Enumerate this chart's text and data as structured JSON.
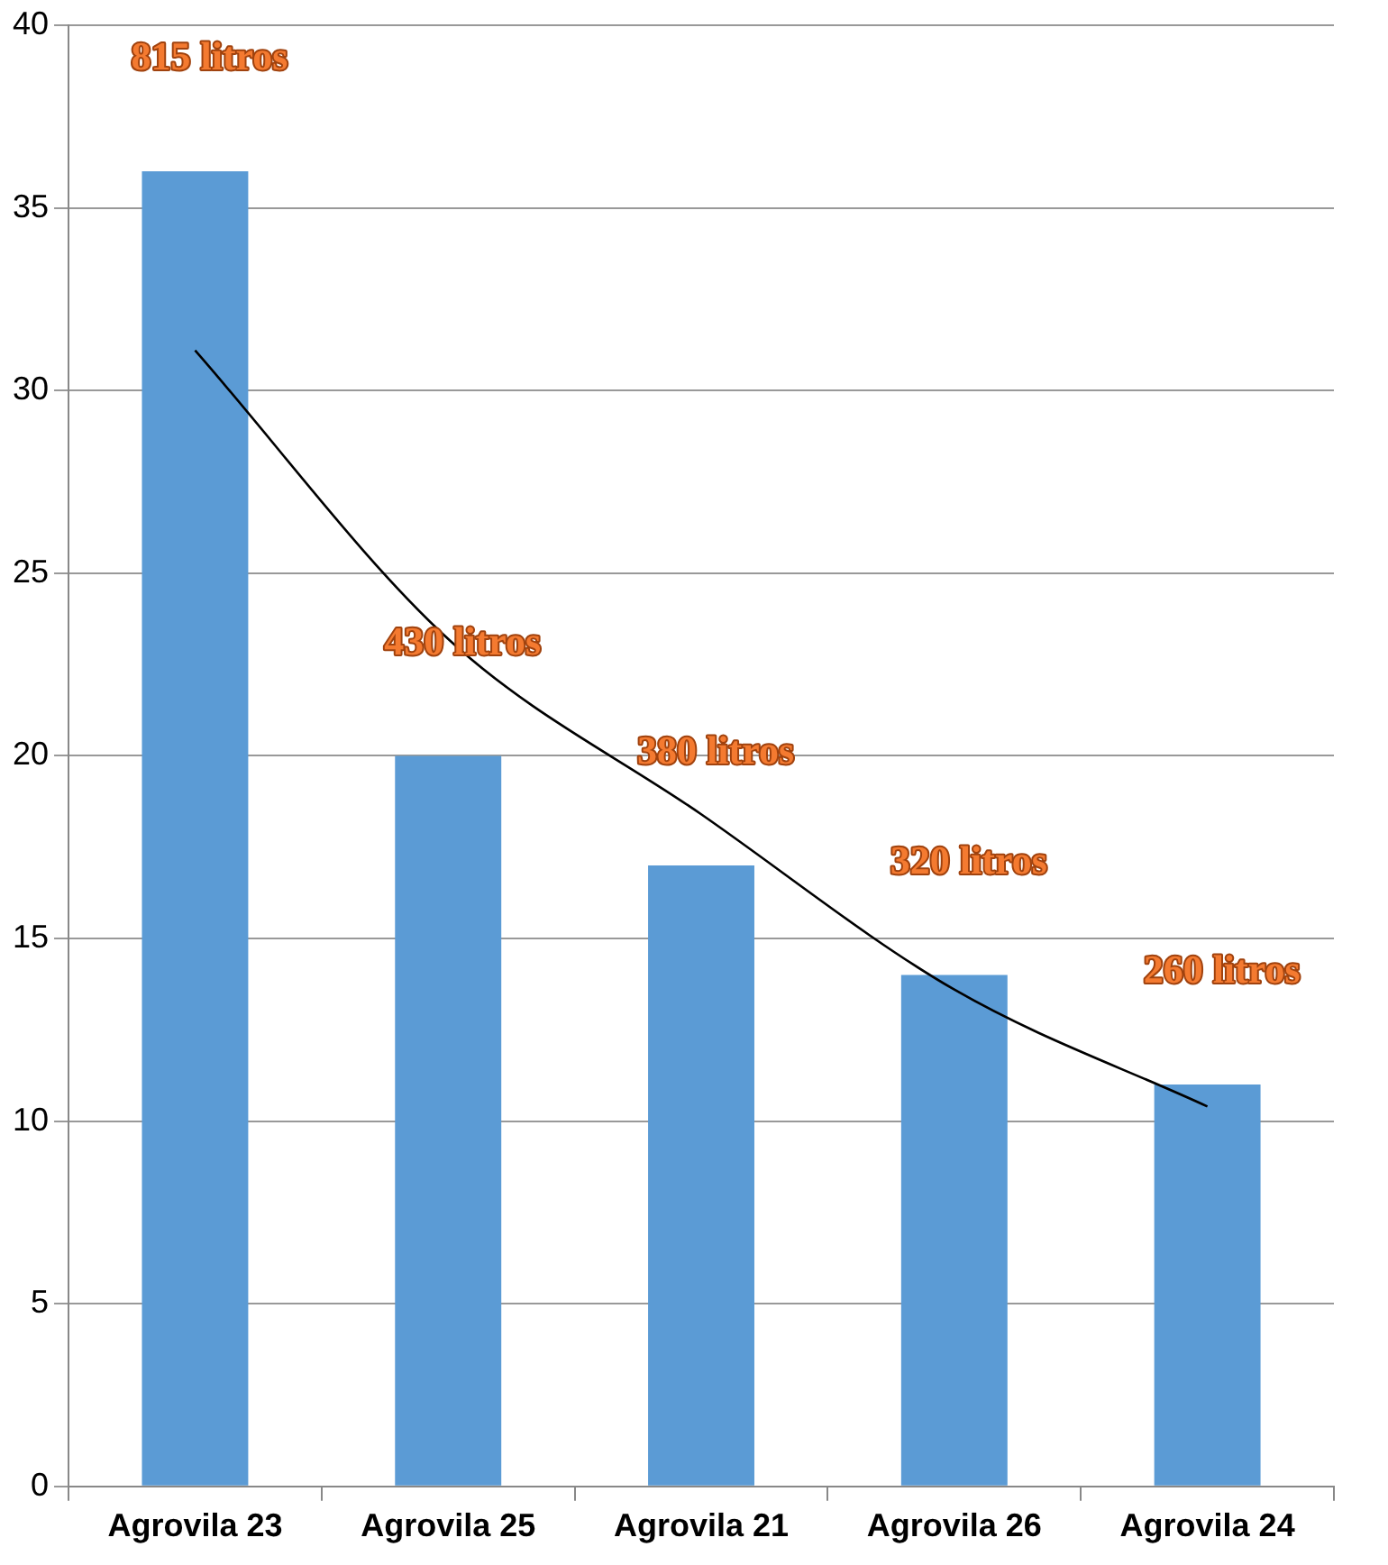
{
  "chart_data": {
    "type": "bar",
    "categories": [
      "Agrovila 23",
      "Agrovila 25",
      "Agrovila 21",
      "Agrovila 26",
      "Agrovila 24"
    ],
    "series": [
      {
        "color": "#5b9bd5",
        "values": [
          36,
          20,
          17,
          14,
          11
        ]
      },
      {
        "type": "line",
        "color": "#000000",
        "values": [
          31.1,
          23.2,
          18.4,
          13.6,
          10.4
        ]
      }
    ],
    "ylim": [
      0,
      40
    ],
    "yticks": [
      0,
      5,
      10,
      15,
      20,
      25,
      30,
      35,
      40
    ],
    "grid": "y",
    "legend": false,
    "marker": "none",
    "annotations": [
      "815 litros",
      "430 litros",
      "380 litros",
      "320 litros",
      "260 litros"
    ]
  }
}
